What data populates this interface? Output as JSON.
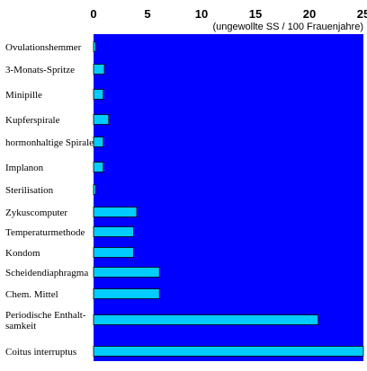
{
  "chart_data": {
    "type": "bar",
    "orientation": "horizontal",
    "axis_position": "top",
    "unit_label": "(ungewollte SS / 100 Frauenjahre)",
    "xlim": [
      0,
      25
    ],
    "ticks": [
      0,
      5,
      10,
      15,
      20,
      25
    ],
    "grid": false,
    "legend": "none",
    "categories": [
      [
        "Ovulationshemmer"
      ],
      [
        "3-Monats-Spritze"
      ],
      [
        "Minipille"
      ],
      [
        "Kupferspirale"
      ],
      [
        "hormonhaltige Spirale"
      ],
      [
        "Implanon"
      ],
      [
        "Sterilisation"
      ],
      [
        "Zykuscomputer"
      ],
      [
        "Temperaturmethode"
      ],
      [
        "Kondom"
      ],
      [
        "Scheidendiaphragma"
      ],
      [
        "Chem. Mittel"
      ],
      [
        "Periodische Enthalt-",
        "samkeit"
      ],
      [
        "Coitus interruptus"
      ]
    ],
    "values": [
      0.2,
      1.0,
      0.9,
      1.4,
      0.9,
      0.9,
      0.2,
      4.0,
      3.7,
      3.7,
      6.1,
      6.1,
      20.8,
      25.0
    ],
    "colors": {
      "plot_background": "#0000ff",
      "bar_fill": "#00ccff",
      "bar_stroke": "#000000",
      "page_background": "#ffffff"
    }
  }
}
